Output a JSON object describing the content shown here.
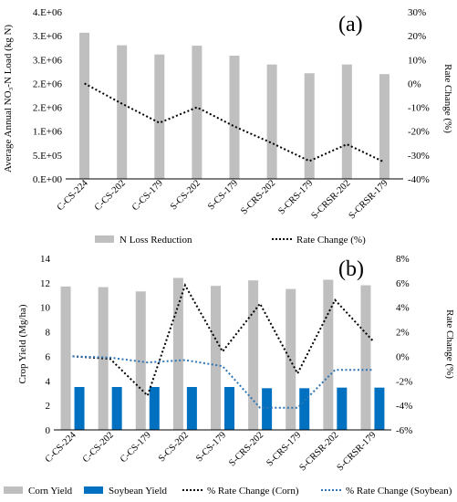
{
  "colors": {
    "bar_gray": "#bfbfbf",
    "bar_blue": "#0070c0",
    "line_black": "#000000",
    "line_blue": "#2e75b6",
    "axis": "#000000"
  },
  "chart_data": [
    {
      "type": "bar",
      "panel_label": "(a)",
      "ylabel_left": "Average Annual NO₃-N Load (kg N)",
      "ylabel_right": "Rate Change (%)",
      "ylim": [
        0,
        4000000
      ],
      "y2lim": [
        -40,
        30
      ],
      "yticks": [
        "0.E+00",
        "5.E+05",
        "1.E+06",
        "2.E+06",
        "2.E+06",
        "3.E+06",
        "3.E+06",
        "4.E+06"
      ],
      "y2ticks": [
        "30%",
        "20%",
        "10%",
        "0%",
        "-10%",
        "-20%",
        "-30%",
        "-40%"
      ],
      "categories": [
        "C-CS-224",
        "C-CS-202",
        "C-CS-179",
        "S-CS-202",
        "S-CS-179",
        "S-CRS-202",
        "S-CRS-179",
        "S-CRSR-202",
        "S-CRSR-179"
      ],
      "series": [
        {
          "name": "N Loss Reduction",
          "kind": "bar",
          "axis": "left",
          "values": [
            3500000,
            3200000,
            2980000,
            3190000,
            2950000,
            2740000,
            2530000,
            2740000,
            2510000
          ]
        },
        {
          "name": "Rate Change (%)",
          "kind": "line",
          "style": "dotted",
          "axis": "right",
          "values": [
            0,
            -8.5,
            -16.5,
            -10,
            -18,
            -25,
            -32.5,
            -25.5,
            -33
          ]
        }
      ],
      "legend": [
        "N Loss Reduction",
        "Rate Change (%)"
      ],
      "legend_position": "bottom"
    },
    {
      "type": "bar",
      "panel_label": "(b)",
      "ylabel_left": "Crop Yield (Mg/ha)",
      "ylabel_right": "Rate Change (%)",
      "ylim": [
        0,
        14
      ],
      "y2lim": [
        -6,
        8
      ],
      "yticks": [
        "0",
        "2",
        "4",
        "6",
        "8",
        "10",
        "12",
        "14"
      ],
      "y2ticks": [
        "8%",
        "6%",
        "4%",
        "2%",
        "0%",
        "-2%",
        "-4%",
        "-6%"
      ],
      "categories": [
        "C-CS-224",
        "C-CS-202",
        "C-CS-179",
        "S-CS-202",
        "S-CS-179",
        "S-CRS-202",
        "S-CRS-179",
        "S-CRSR-202",
        "S-CRSR-179"
      ],
      "series": [
        {
          "name": "Corn Yield",
          "kind": "bar",
          "axis": "left",
          "values": [
            11.7,
            11.65,
            11.3,
            12.4,
            11.75,
            12.2,
            11.5,
            12.25,
            11.8
          ]
        },
        {
          "name": "Soybean Yield",
          "kind": "bar",
          "axis": "left",
          "values": [
            3.5,
            3.5,
            3.5,
            3.5,
            3.5,
            3.4,
            3.4,
            3.45,
            3.45
          ]
        },
        {
          "name": "% Rate Change (Corn)",
          "kind": "line",
          "style": "dotted",
          "axis": "right",
          "values": [
            0,
            -0.2,
            -3.2,
            5.8,
            0.4,
            4.3,
            -1.4,
            4.6,
            1.3
          ]
        },
        {
          "name": "% Rate Change (Soybean)",
          "kind": "line",
          "style": "dotted",
          "axis": "right",
          "values": [
            0,
            -0.1,
            -0.5,
            -0.3,
            -0.8,
            -4.2,
            -4.2,
            -1.1,
            -1.1
          ]
        }
      ],
      "legend": [
        "Corn Yield",
        "Soybean Yield",
        "% Rate Change (Corn)",
        "% Rate Change (Soybean)"
      ],
      "legend_position": "bottom"
    }
  ]
}
